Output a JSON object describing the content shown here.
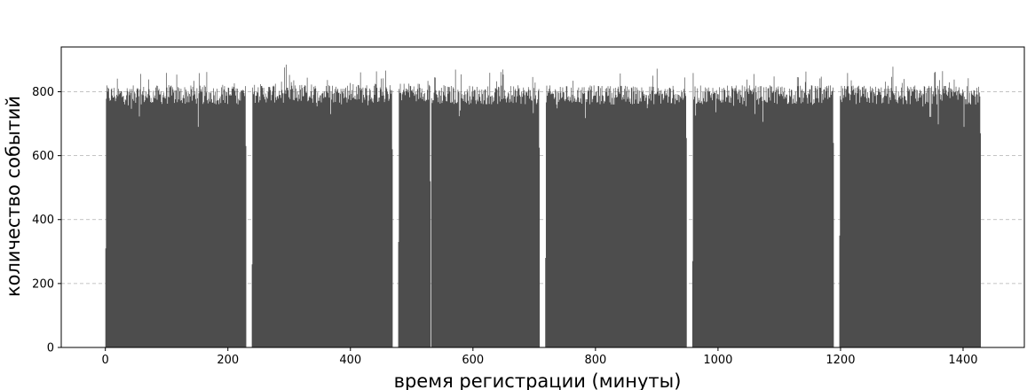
{
  "chart_data": {
    "type": "bar",
    "title": "",
    "xlabel": "время регистрации (минуты)",
    "ylabel": "количество событий",
    "xlim": [
      -72,
      1500
    ],
    "ylim": [
      0,
      940
    ],
    "xticks": [
      0,
      200,
      400,
      600,
      800,
      1000,
      1200,
      1400
    ],
    "yticks": [
      0,
      200,
      400,
      600,
      800
    ],
    "grid": "y-dashed",
    "bar_color": "#4d4d4d",
    "bin_width_minutes": 1,
    "segments": [
      {
        "start": 0,
        "end": 229,
        "edge_start": 310,
        "edge_end": 630,
        "level": 790
      },
      {
        "start": 239,
        "end": 468,
        "edge_start": 260,
        "edge_end": 620,
        "level": 795
      },
      {
        "start": 478,
        "end": 530,
        "edge_start": 330,
        "edge_end": 520,
        "level": 800
      },
      {
        "start": 532,
        "end": 708,
        "edge_start": 780,
        "edge_end": 625,
        "level": 790
      },
      {
        "start": 718,
        "end": 948,
        "edge_start": 280,
        "edge_end": 655,
        "level": 790
      },
      {
        "start": 958,
        "end": 1188,
        "edge_start": 270,
        "edge_end": 640,
        "level": 790
      },
      {
        "start": 1198,
        "end": 1428,
        "edge_start": 350,
        "edge_end": 670,
        "level": 790
      }
    ]
  }
}
